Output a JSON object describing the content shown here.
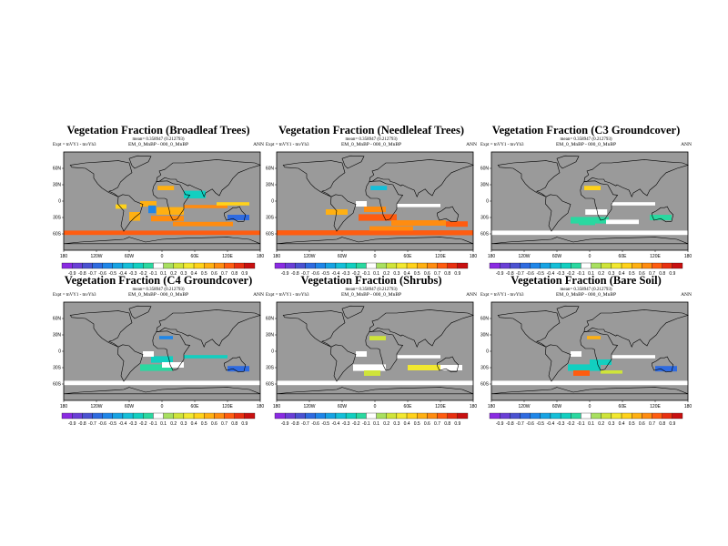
{
  "chart_data": [
    {
      "type": "heatmap",
      "title": "Vegetation Fraction (Broadleaf Trees)",
      "mean_text": "mean= 0.358947 (0.212793)",
      "case": "EM_0_MnBP - 000_0_MnBP",
      "experiment": "Expt = tnVY1 - tnvYh3",
      "season": "ANN",
      "lat_ticks": [
        "60N",
        "30N",
        "0",
        "30S",
        "60S"
      ],
      "lon_ticks": [
        "180",
        "120W",
        "60W",
        "0",
        "60E",
        "120E",
        "180"
      ],
      "levels": [
        "-0.9",
        "-0.8",
        "-0.7",
        "-0.6",
        "-0.5",
        "-0.4",
        "-0.3",
        "-0.2",
        "-0.1",
        "0.1",
        "0.2",
        "0.3",
        "0.4",
        "0.5",
        "0.6",
        "0.7",
        "0.8",
        "0.9"
      ]
    },
    {
      "type": "heatmap",
      "title": "Vegetation Fraction (Needleleaf Trees)",
      "mean_text": "mean= 0.358947 (0.212793)",
      "case": "EM_0_MnBP - 000_0_MnBP",
      "experiment": "Expt = tnVY1 - tnvYh3",
      "season": "ANN",
      "lat_ticks": [
        "60N",
        "30N",
        "0",
        "30S",
        "60S"
      ],
      "lon_ticks": [
        "180",
        "120W",
        "60W",
        "0",
        "60E",
        "120E",
        "180"
      ],
      "levels": [
        "-0.9",
        "-0.8",
        "-0.7",
        "-0.6",
        "-0.5",
        "-0.4",
        "-0.3",
        "-0.2",
        "-0.1",
        "0.1",
        "0.2",
        "0.3",
        "0.4",
        "0.5",
        "0.6",
        "0.7",
        "0.8",
        "0.9"
      ]
    },
    {
      "type": "heatmap",
      "title": "Vegetation Fraction (C3 Groundcover)",
      "mean_text": "mean= 0.358947 (0.212793)",
      "case": "EM_0_MnBP - 000_0_MnBP",
      "experiment": "Expt = tnVY1 - tnvYh3",
      "season": "ANN",
      "lat_ticks": [
        "60N",
        "30N",
        "0",
        "30S",
        "60S"
      ],
      "lon_ticks": [
        "180",
        "120W",
        "60W",
        "0",
        "60E",
        "120E",
        "180"
      ],
      "levels": [
        "-0.9",
        "-0.8",
        "-0.7",
        "-0.6",
        "-0.5",
        "-0.4",
        "-0.3",
        "-0.2",
        "-0.1",
        "0.1",
        "0.2",
        "0.3",
        "0.4",
        "0.5",
        "0.6",
        "0.7",
        "0.8",
        "0.9"
      ]
    },
    {
      "type": "heatmap",
      "title": "Vegetation Fraction (C4 Groundcover)",
      "mean_text": "mean= 0.358947 (0.212793)",
      "case": "EM_0_MnBP - 000_0_MnBP",
      "experiment": "Expt = tnVY1 - tnvYh3",
      "season": "ANN",
      "lat_ticks": [
        "60N",
        "30N",
        "0",
        "30S",
        "60S"
      ],
      "lon_ticks": [
        "180",
        "120W",
        "60W",
        "0",
        "60E",
        "120E",
        "180"
      ],
      "levels": [
        "-0.9",
        "-0.8",
        "-0.7",
        "-0.6",
        "-0.5",
        "-0.4",
        "-0.3",
        "-0.2",
        "-0.1",
        "0.1",
        "0.2",
        "0.3",
        "0.4",
        "0.5",
        "0.6",
        "0.7",
        "0.8",
        "0.9"
      ]
    },
    {
      "type": "heatmap",
      "title": "Vegetation Fraction (Shrubs)",
      "mean_text": "mean= 0.358947 (0.212793)",
      "case": "EM_0_MnBP - 000_0_MnBP",
      "experiment": "Expt = tnVY1 - tnvYh3",
      "season": "ANN",
      "lat_ticks": [
        "60N",
        "30N",
        "0",
        "30S",
        "60S"
      ],
      "lon_ticks": [
        "180",
        "120W",
        "60W",
        "0",
        "60E",
        "120E",
        "180"
      ],
      "levels": [
        "-0.9",
        "-0.8",
        "-0.7",
        "-0.6",
        "-0.5",
        "-0.4",
        "-0.3",
        "-0.2",
        "-0.1",
        "0.1",
        "0.2",
        "0.3",
        "0.4",
        "0.5",
        "0.6",
        "0.7",
        "0.8",
        "0.9"
      ]
    },
    {
      "type": "heatmap",
      "title": "Vegetation Fraction (Bare Soil)",
      "mean_text": "mean= 0.358947 (0.212793)",
      "case": "EM_0_MnBP - 000_0_MnBP",
      "experiment": "Expt = tnVY1 - tnvYh3",
      "season": "ANN",
      "lat_ticks": [
        "60N",
        "30N",
        "0",
        "30S",
        "60S"
      ],
      "lon_ticks": [
        "180",
        "120W",
        "60W",
        "0",
        "60E",
        "120E",
        "180"
      ],
      "levels": [
        "-0.9",
        "-0.8",
        "-0.7",
        "-0.6",
        "-0.5",
        "-0.4",
        "-0.3",
        "-0.2",
        "-0.1",
        "0.1",
        "0.2",
        "0.3",
        "0.4",
        "0.5",
        "0.6",
        "0.7",
        "0.8",
        "0.9"
      ]
    }
  ],
  "colors": {
    "land_mask": "#9a9a9a",
    "near_zero": "#ffffff",
    "scale": [
      "#8a2be2",
      "#6a3fd6",
      "#4b52d1",
      "#2f6be0",
      "#1f86e8",
      "#17a3e3",
      "#15bfd8",
      "#12cfc0",
      "#2ad8a0",
      "#ffffff",
      "#a8e060",
      "#cfe43a",
      "#f2e830",
      "#ffd21a",
      "#ffb012",
      "#ff8c10",
      "#ff5c10",
      "#e83010",
      "#c81010"
    ]
  }
}
